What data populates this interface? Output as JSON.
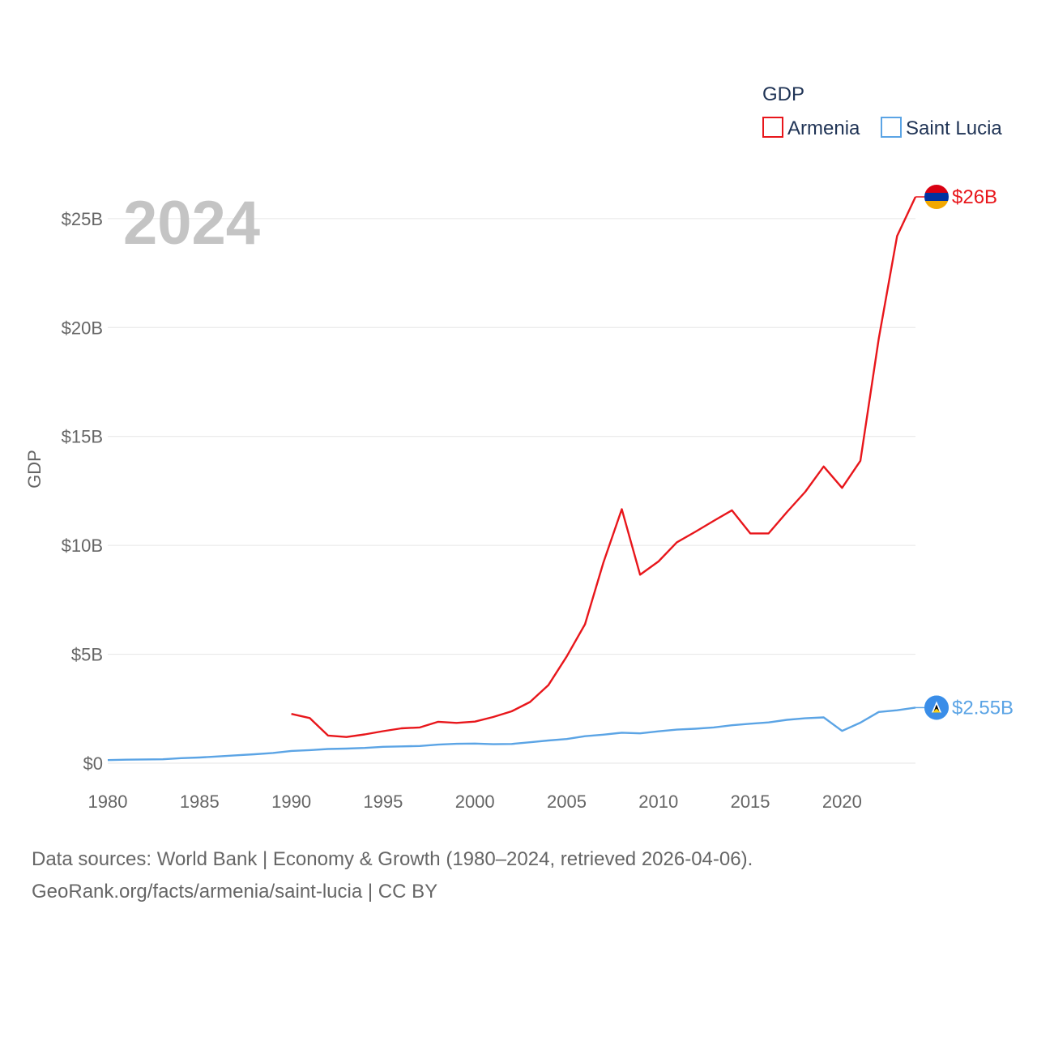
{
  "chart_data": {
    "type": "line",
    "title": "GDP",
    "ylabel": "GDP",
    "xlabel": "",
    "year_label": "2024",
    "xlim": [
      1980,
      2024
    ],
    "ylim": [
      0,
      26
    ],
    "x_ticks": [
      1980,
      1985,
      1990,
      1995,
      2000,
      2005,
      2010,
      2015,
      2020
    ],
    "x_tick_labels": [
      "1980",
      "1985",
      "1990",
      "1995",
      "2000",
      "2005",
      "2010",
      "2015",
      "2020"
    ],
    "y_ticks": [
      0,
      5,
      10,
      15,
      20,
      25
    ],
    "y_tick_labels": [
      "$0",
      "$5B",
      "$10B",
      "$15B",
      "$20B",
      "$25B"
    ],
    "legend_title": "GDP",
    "legend_position": "top-right",
    "grid": true,
    "series": [
      {
        "name": "Armenia",
        "color": "#e8161b",
        "end_label": "$26B",
        "icon": "armenia-flag-icon",
        "x": [
          1990,
          1991,
          1992,
          1993,
          1994,
          1995,
          1996,
          1997,
          1998,
          1999,
          2000,
          2001,
          2002,
          2003,
          2004,
          2005,
          2006,
          2007,
          2008,
          2009,
          2010,
          2011,
          2012,
          2013,
          2014,
          2015,
          2016,
          2017,
          2018,
          2019,
          2020,
          2021,
          2022,
          2023,
          2024
        ],
        "values": [
          2.26,
          2.07,
          1.27,
          1.2,
          1.32,
          1.47,
          1.6,
          1.64,
          1.9,
          1.85,
          1.91,
          2.12,
          2.38,
          2.81,
          3.58,
          4.9,
          6.38,
          9.21,
          11.66,
          8.65,
          9.26,
          10.14,
          10.62,
          11.12,
          11.61,
          10.55,
          10.55,
          11.53,
          12.46,
          13.62,
          12.64,
          13.88,
          19.5,
          24.2,
          26.0
        ]
      },
      {
        "name": "Saint Lucia",
        "color": "#5ba4e5",
        "end_label": "$2.55B",
        "icon": "saint-lucia-flag-icon",
        "x": [
          1980,
          1981,
          1982,
          1983,
          1984,
          1985,
          1986,
          1987,
          1988,
          1989,
          1990,
          1991,
          1992,
          1993,
          1994,
          1995,
          1996,
          1997,
          1998,
          1999,
          2000,
          2001,
          2002,
          2003,
          2004,
          2005,
          2006,
          2007,
          2008,
          2009,
          2010,
          2011,
          2012,
          2013,
          2014,
          2015,
          2016,
          2017,
          2018,
          2019,
          2020,
          2021,
          2022,
          2023,
          2024
        ],
        "values": [
          0.14,
          0.16,
          0.17,
          0.18,
          0.23,
          0.26,
          0.31,
          0.36,
          0.41,
          0.47,
          0.56,
          0.6,
          0.65,
          0.67,
          0.7,
          0.75,
          0.77,
          0.79,
          0.85,
          0.89,
          0.9,
          0.87,
          0.88,
          0.96,
          1.04,
          1.11,
          1.24,
          1.31,
          1.4,
          1.37,
          1.46,
          1.54,
          1.58,
          1.64,
          1.74,
          1.81,
          1.87,
          1.99,
          2.06,
          2.1,
          1.48,
          1.86,
          2.35,
          2.43,
          2.55
        ]
      }
    ]
  },
  "footer": {
    "line1": "Data sources: World Bank | Economy & Growth (1980–2024, retrieved 2026-04-06).",
    "line2": "GeoRank.org/facts/armenia/saint-lucia | CC BY"
  }
}
